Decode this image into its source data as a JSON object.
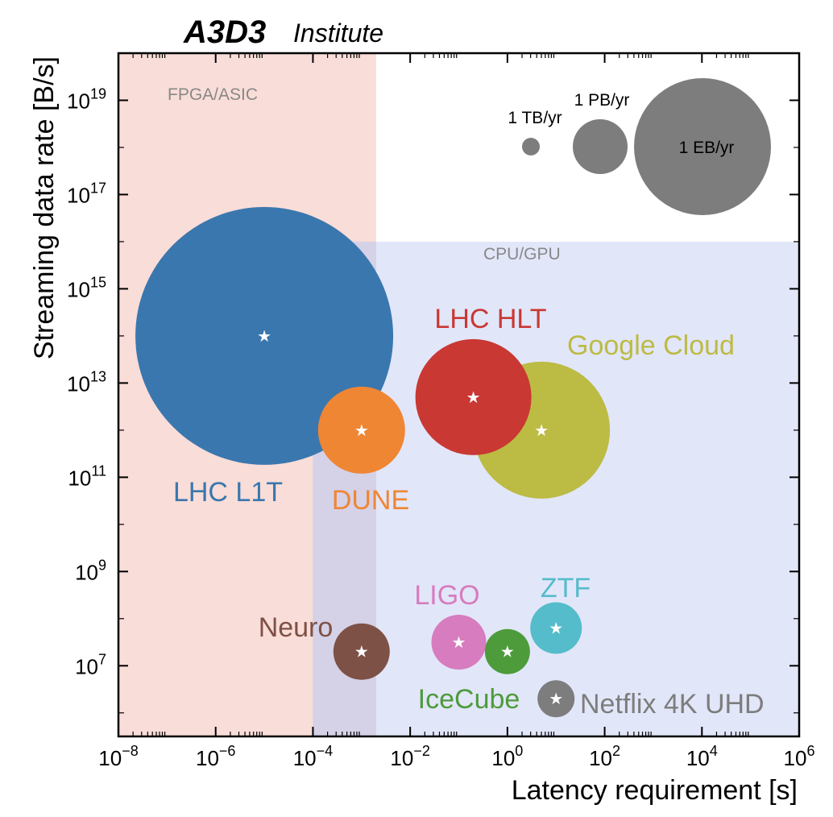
{
  "brand": {
    "bold": "A3D3",
    "light": "Institute"
  },
  "chart_data": {
    "type": "scatter",
    "subtype": "bubble",
    "xlabel": "Latency requirement [s]",
    "ylabel": "Streaming data rate [B/s]",
    "xscale": "log",
    "yscale": "log",
    "xlim_exp": [
      -8,
      6
    ],
    "ylim_exp": [
      5.5,
      20
    ],
    "x_ticks": [
      "10^-8",
      "10^-6",
      "10^-4",
      "10^-2",
      "10^0",
      "10^2",
      "10^4",
      "10^6"
    ],
    "y_ticks": [
      "10^7",
      "10^9",
      "10^11",
      "10^13",
      "10^15",
      "10^17",
      "10^19"
    ],
    "regions": [
      {
        "label": "FPGA/ASIC",
        "x_exp": [
          -8,
          -2.7
        ],
        "y_exp": [
          5.5,
          20
        ],
        "color": "#f9ddd8"
      },
      {
        "label": "CPU/GPU",
        "x_exp": [
          -4,
          6
        ],
        "y_exp": [
          5.5,
          16
        ],
        "color": "#dde2f8"
      }
    ],
    "points": [
      {
        "label": "LHC L1T",
        "x_exp": -5,
        "y_exp": 14,
        "color": "#3a77ae",
        "size_r": 160
      },
      {
        "label": "DUNE",
        "x_exp": -3,
        "y_exp": 12,
        "color": "#ef8634",
        "size_r": 54
      },
      {
        "label": "LHC HLT",
        "x_exp": -0.7,
        "y_exp": 12.7,
        "color": "#c93833",
        "size_r": 72
      },
      {
        "label": "Google Cloud",
        "x_exp": 0.7,
        "y_exp": 12,
        "color": "#bcbb44",
        "size_r": 85
      },
      {
        "label": "Neuro",
        "x_exp": -3,
        "y_exp": 7.3,
        "color": "#7e5146",
        "size_r": 35
      },
      {
        "label": "LIGO",
        "x_exp": -1,
        "y_exp": 7.5,
        "color": "#d77cbe",
        "size_r": 34
      },
      {
        "label": "IceCube",
        "x_exp": 0,
        "y_exp": 7.3,
        "color": "#4d9b3b",
        "size_r": 28
      },
      {
        "label": "ZTF",
        "x_exp": 1,
        "y_exp": 7.8,
        "color": "#55bccb",
        "size_r": 32
      },
      {
        "label": "Netflix 4K UHD",
        "x_exp": 1,
        "y_exp": 6.3,
        "color": "#7d7d7d",
        "size_r": 23
      }
    ],
    "size_legend": [
      {
        "label": "1 TB/yr"
      },
      {
        "label": "1 PB/yr"
      },
      {
        "label": "1 EB/yr"
      }
    ]
  }
}
